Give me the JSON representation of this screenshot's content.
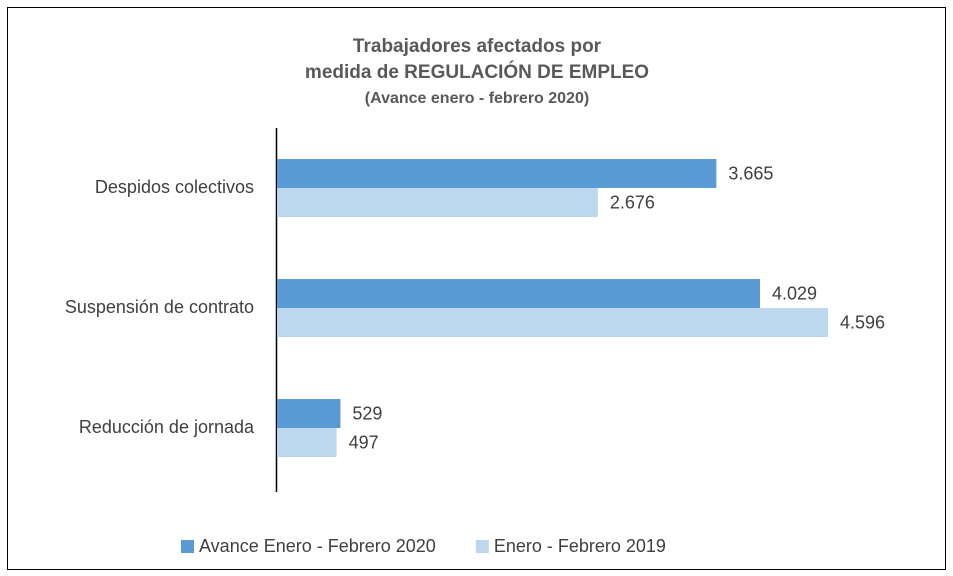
{
  "chart_data": {
    "type": "bar",
    "orientation": "horizontal",
    "title": [
      "Trabajadores  afectados por",
      "medida de REGULACIÓN  DE EMPLEO"
    ],
    "subtitle": "(Avance enero - febrero 2020)",
    "categories": [
      "Despidos colectivos",
      "Suspensión de contrato",
      "Reducción de jornada"
    ],
    "series": [
      {
        "name": "Avance Enero - Febrero 2020",
        "color": "#5b9bd5",
        "values": [
          3665,
          4029,
          529
        ],
        "value_labels": [
          "3.665",
          "4.029",
          "529"
        ]
      },
      {
        "name": "Enero - Febrero 2019",
        "color": "#bdd7ee",
        "values": [
          2676,
          4596,
          497
        ],
        "value_labels": [
          "2.676",
          "4.596",
          "497"
        ]
      }
    ],
    "legend": "bottom"
  }
}
